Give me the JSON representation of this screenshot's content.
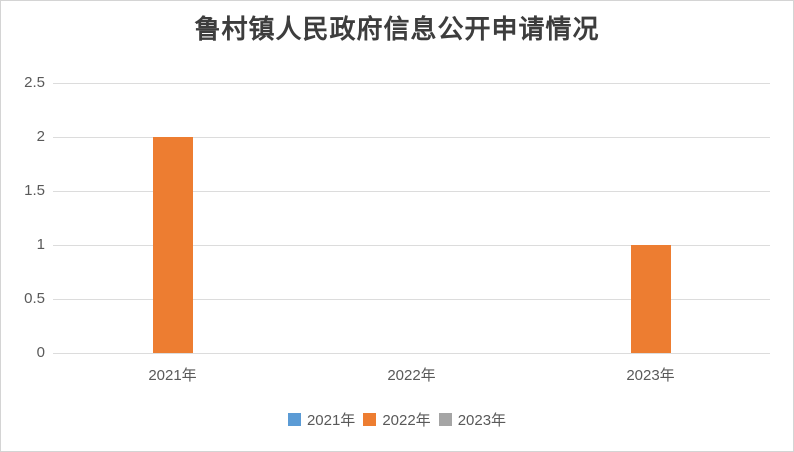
{
  "chart_data": {
    "type": "bar",
    "title": "鲁村镇人民政府信息公开申请情况",
    "categories": [
      "2021年",
      "2022年",
      "2023年"
    ],
    "series": [
      {
        "name": "2021年",
        "color": "#5B9BD5",
        "values": [
          0,
          0,
          0
        ]
      },
      {
        "name": "2022年",
        "color": "#ED7D31",
        "values": [
          2,
          0,
          1
        ]
      },
      {
        "name": "2023年",
        "color": "#A5A5A5",
        "values": [
          0,
          0,
          0
        ]
      }
    ],
    "xlabel": "",
    "ylabel": "",
    "ylim": [
      0,
      2.5
    ],
    "yticks": [
      0,
      0.5,
      1,
      1.5,
      2,
      2.5
    ],
    "grid": "horizontal",
    "gridline_color": "#DCDCDC",
    "axis_text_color": "#595959",
    "title_color": "#3D3D3D",
    "legend_position": "bottom"
  }
}
